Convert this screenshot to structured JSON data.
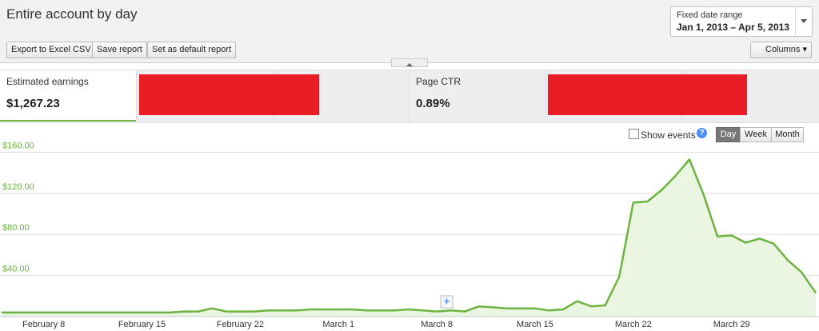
{
  "header": {
    "title": "Entire account by day",
    "date_range_label": "Fixed date range",
    "date_range": "Jan 1, 2013 – Apr 5, 2013"
  },
  "toolbar": {
    "buttons": [
      "Export to Excel CSV",
      "Save report",
      "Set as default report"
    ],
    "columns": "Columns"
  },
  "metrics": [
    {
      "label": "Estimated earnings",
      "value": "$1,267.23"
    },
    {
      "label": "Page CTR",
      "value": "0.89%"
    }
  ],
  "controls": {
    "show_events": "Show events",
    "help": "?",
    "granularity": [
      "Day",
      "Week",
      "Month"
    ]
  },
  "chart_data": {
    "type": "line",
    "color": "#6db33f",
    "fill": "#eaf5e2",
    "grid": true,
    "categories": [
      null,
      null,
      null,
      "February 8",
      null,
      null,
      null,
      null,
      null,
      null,
      "February 15",
      null,
      null,
      null,
      null,
      null,
      null,
      "February 22",
      null,
      null,
      null,
      null,
      null,
      null,
      "March 1",
      null,
      null,
      null,
      null,
      null,
      null,
      "March 8",
      null,
      null,
      null,
      null,
      null,
      null,
      "March 15",
      null,
      null,
      null,
      null,
      null,
      null,
      "March 22",
      null,
      null,
      null,
      null,
      null,
      null,
      "March 29",
      null,
      null,
      null,
      null,
      null,
      null
    ],
    "values": [
      4,
      4,
      4,
      4,
      4,
      4,
      4,
      4,
      4,
      4,
      4,
      4,
      4,
      5,
      5,
      8,
      5,
      5,
      5,
      6,
      6,
      6,
      7,
      7,
      7,
      7,
      6,
      6,
      6,
      7,
      6,
      5,
      6,
      5,
      10,
      9,
      8,
      8,
      8,
      6,
      7,
      15,
      10,
      11,
      39,
      111,
      112,
      123,
      137,
      153,
      119,
      78,
      79,
      72,
      76,
      71,
      55,
      43,
      23
    ],
    "ylim": [
      0,
      165
    ],
    "yticks": [
      {
        "value": 40,
        "label": "$40.00"
      },
      {
        "value": 80,
        "label": "$80.00"
      },
      {
        "value": 120,
        "label": "$120.00"
      },
      {
        "value": 160,
        "label": "$160.00"
      }
    ]
  }
}
